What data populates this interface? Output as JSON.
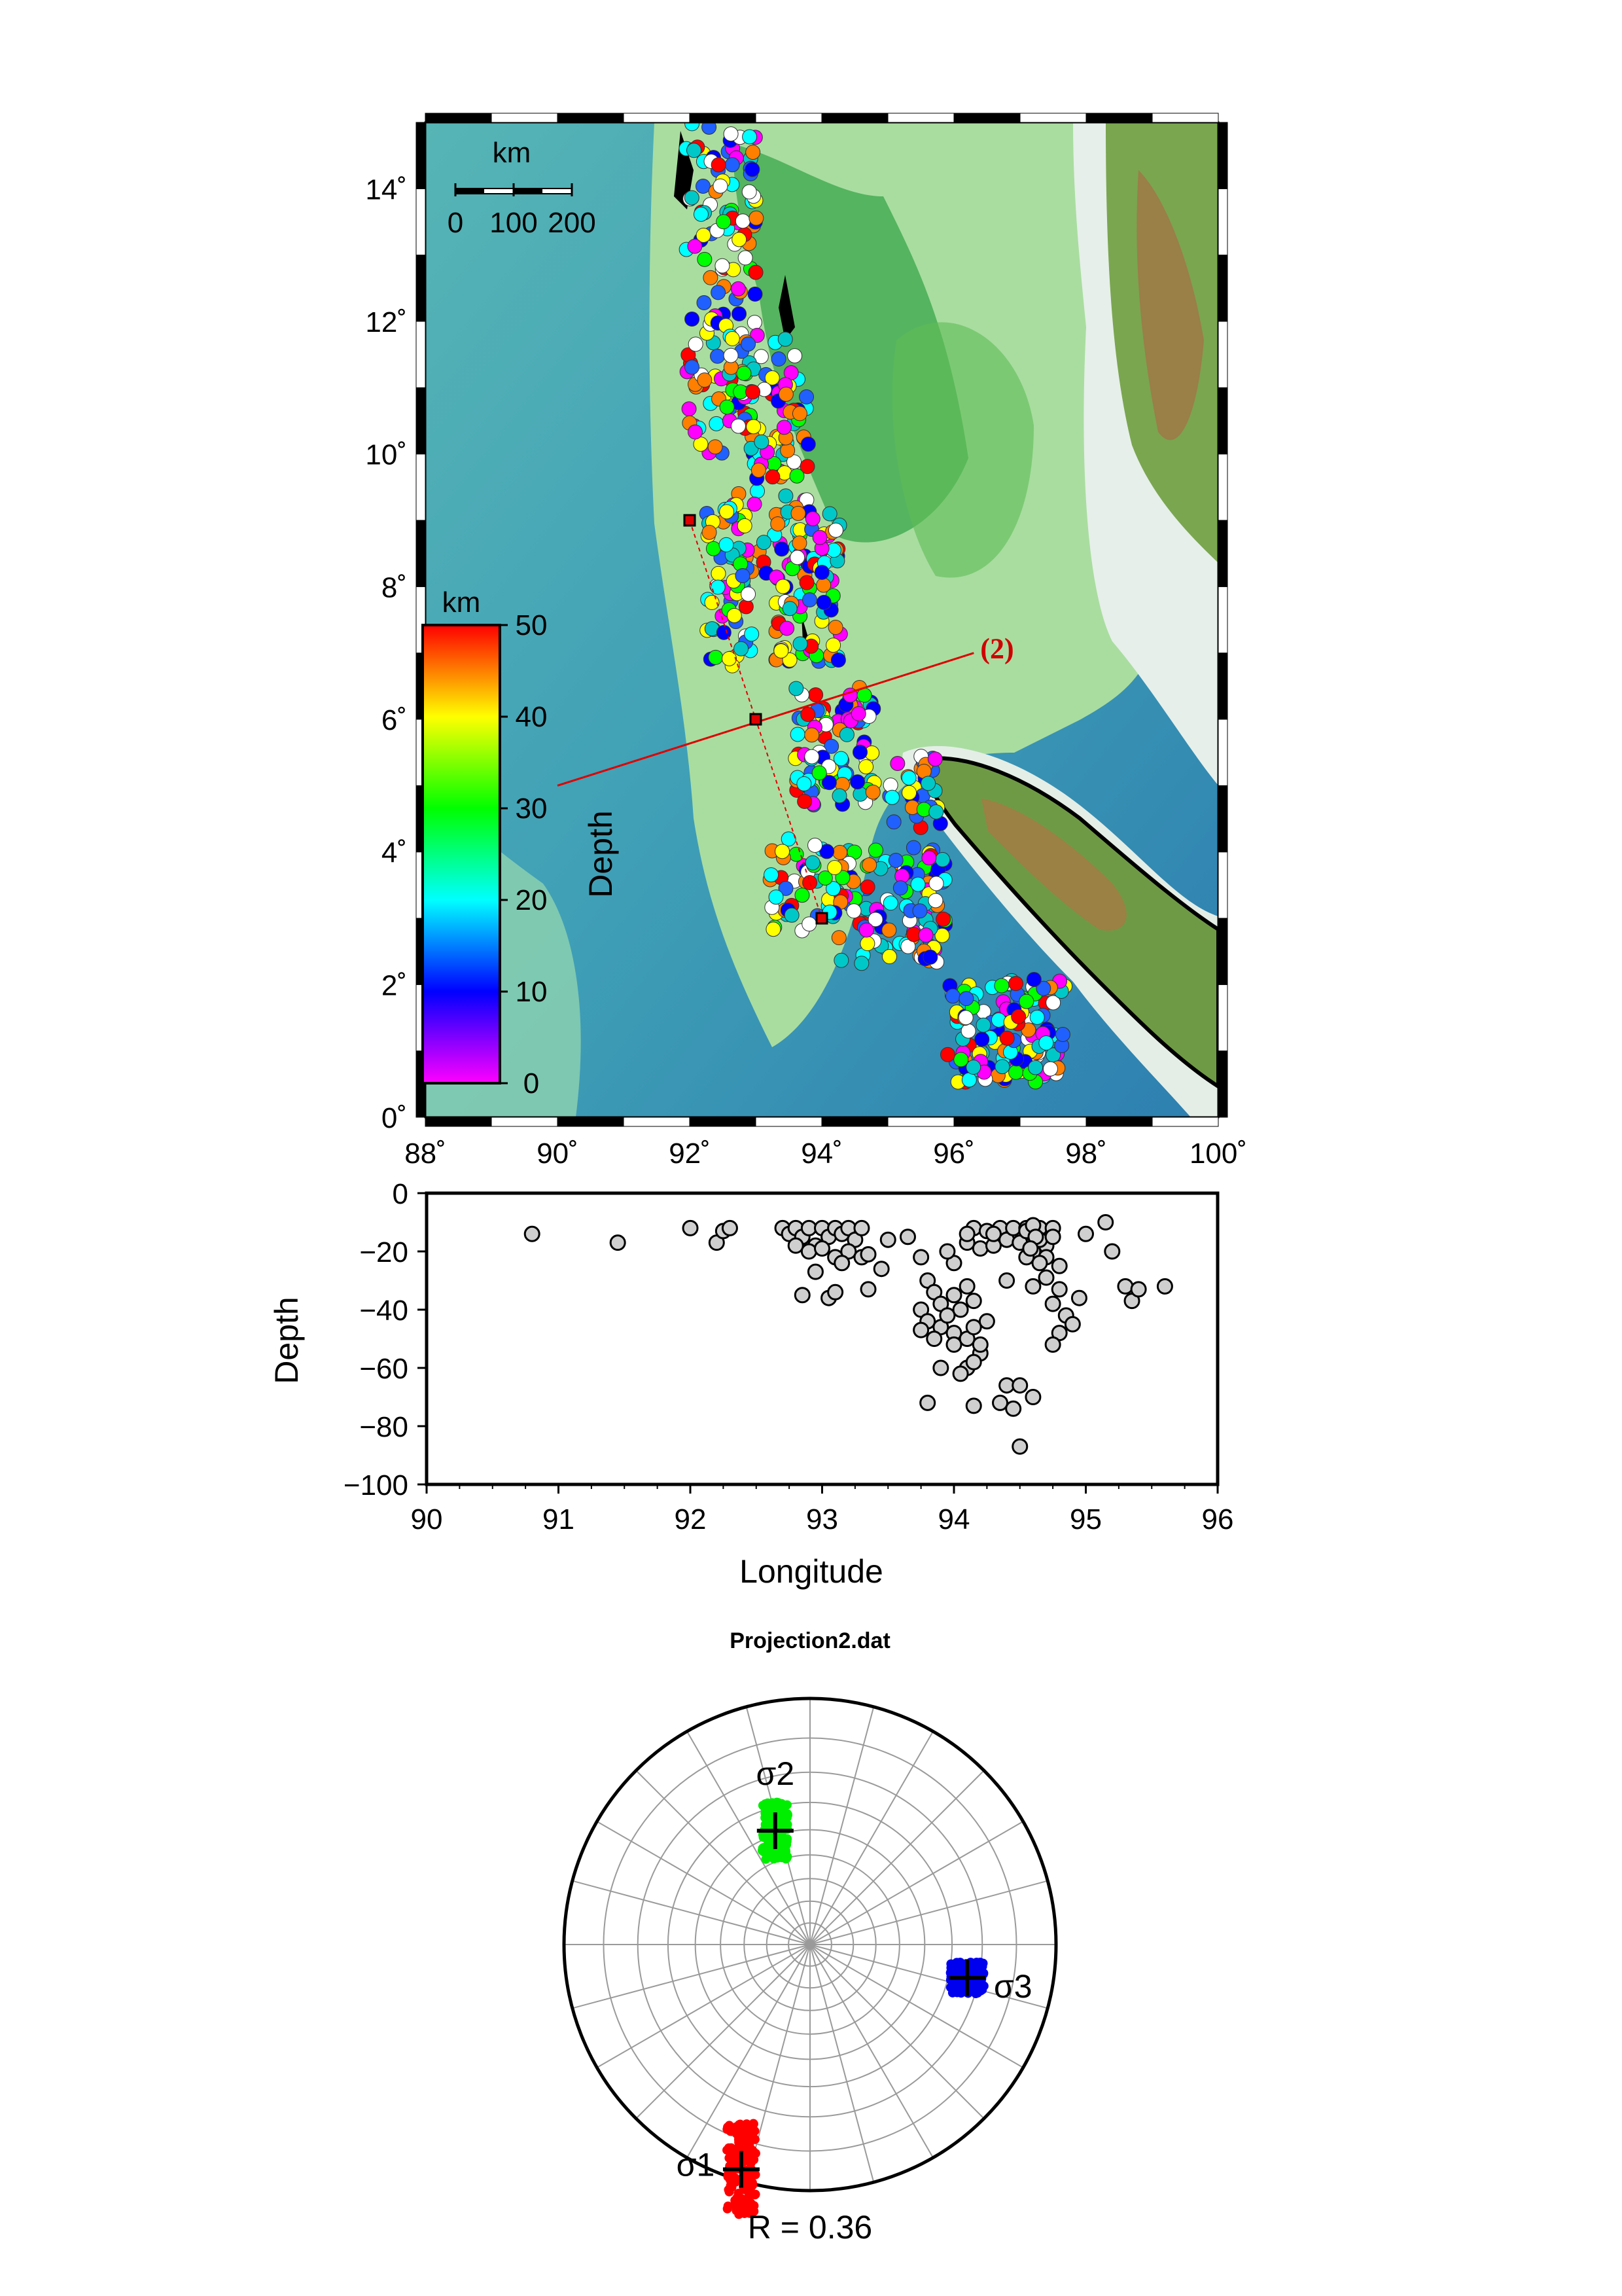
{
  "map": {
    "lon_ticks": [
      "88˚",
      "90˚",
      "92˚",
      "94˚",
      "96˚",
      "98˚",
      "100˚"
    ],
    "lat_ticks": [
      "0˚",
      "2˚",
      "4˚",
      "6˚",
      "8˚",
      "10˚",
      "12˚",
      "14˚"
    ],
    "lon_range": [
      88,
      100
    ],
    "lat_range": [
      0,
      15
    ],
    "scalebar": {
      "unit": "km",
      "labels": [
        "0",
        "100",
        "200"
      ]
    },
    "colorbar": {
      "unit": "km",
      "label": "Depth",
      "ticks": [
        "0",
        "10",
        "20",
        "30",
        "40",
        "50"
      ],
      "range": [
        0,
        50
      ],
      "colors": [
        "#ff00ff",
        "#0000ff",
        "#00ffff",
        "#00ff00",
        "#ffff00",
        "#ff0000"
      ]
    },
    "profile_label": "(2)",
    "profile_line": {
      "start": [
        90.0,
        5.0
      ],
      "end": [
        96.3,
        7.0
      ]
    },
    "trench_squares": [
      [
        92.0,
        9.0
      ],
      [
        93.0,
        6.0
      ],
      [
        94.0,
        3.0
      ]
    ]
  },
  "chart_data": [
    {
      "type": "scatter",
      "title": "",
      "xlabel": "Longitude",
      "ylabel": "Depth",
      "xlim": [
        90,
        96
      ],
      "ylim": [
        -100,
        0
      ],
      "xticks": [
        "90",
        "91",
        "92",
        "93",
        "94",
        "95",
        "96"
      ],
      "yticks": [
        "0",
        "−20",
        "−40",
        "−60",
        "−80",
        "−100"
      ],
      "points": [
        [
          90.8,
          -14
        ],
        [
          91.45,
          -17
        ],
        [
          92.0,
          -12
        ],
        [
          92.2,
          -17
        ],
        [
          92.25,
          -13
        ],
        [
          92.3,
          -12
        ],
        [
          92.7,
          -12
        ],
        [
          92.75,
          -14
        ],
        [
          92.8,
          -12
        ],
        [
          92.85,
          -15
        ],
        [
          92.9,
          -12
        ],
        [
          92.95,
          -18
        ],
        [
          93.0,
          -12
        ],
        [
          93.05,
          -15
        ],
        [
          93.1,
          -12
        ],
        [
          93.15,
          -14
        ],
        [
          93.2,
          -12
        ],
        [
          93.25,
          -16
        ],
        [
          93.3,
          -12
        ],
        [
          92.8,
          -18
        ],
        [
          92.9,
          -20
        ],
        [
          93.0,
          -19
        ],
        [
          93.1,
          -22
        ],
        [
          93.2,
          -20
        ],
        [
          93.3,
          -22
        ],
        [
          93.35,
          -21
        ],
        [
          93.45,
          -26
        ],
        [
          92.95,
          -27
        ],
        [
          93.15,
          -24
        ],
        [
          93.5,
          -16
        ],
        [
          92.85,
          -35
        ],
        [
          93.05,
          -36
        ],
        [
          93.1,
          -34
        ],
        [
          93.35,
          -33
        ],
        [
          93.65,
          -15
        ],
        [
          93.75,
          -22
        ],
        [
          93.8,
          -30
        ],
        [
          93.85,
          -34
        ],
        [
          93.9,
          -38
        ],
        [
          93.75,
          -40
        ],
        [
          93.8,
          -44
        ],
        [
          93.9,
          -46
        ],
        [
          93.95,
          -42
        ],
        [
          94.0,
          -35
        ],
        [
          94.05,
          -40
        ],
        [
          94.1,
          -32
        ],
        [
          94.15,
          -37
        ],
        [
          94.0,
          -48
        ],
        [
          93.85,
          -50
        ],
        [
          93.75,
          -47
        ],
        [
          94.0,
          -52
        ],
        [
          94.1,
          -50
        ],
        [
          94.15,
          -46
        ],
        [
          94.2,
          -55
        ],
        [
          94.25,
          -44
        ],
        [
          94.2,
          -52
        ],
        [
          94.1,
          -60
        ],
        [
          94.05,
          -62
        ],
        [
          93.9,
          -60
        ],
        [
          94.15,
          -58
        ],
        [
          93.8,
          -72
        ],
        [
          94.15,
          -73
        ],
        [
          94.35,
          -72
        ],
        [
          94.4,
          -66
        ],
        [
          94.45,
          -74
        ],
        [
          94.5,
          -66
        ],
        [
          94.6,
          -70
        ],
        [
          94.5,
          -87
        ],
        [
          94.0,
          -24
        ],
        [
          94.1,
          -17
        ],
        [
          94.15,
          -12
        ],
        [
          94.2,
          -19
        ],
        [
          94.25,
          -13
        ],
        [
          94.3,
          -18
        ],
        [
          94.35,
          -12
        ],
        [
          94.4,
          -16
        ],
        [
          94.45,
          -12
        ],
        [
          94.5,
          -17
        ],
        [
          94.55,
          -12
        ],
        [
          94.6,
          -14
        ],
        [
          94.65,
          -12
        ],
        [
          94.7,
          -18
        ],
        [
          94.75,
          -12
        ],
        [
          94.6,
          -20
        ],
        [
          94.65,
          -16
        ],
        [
          94.7,
          -22
        ],
        [
          94.75,
          -15
        ],
        [
          94.8,
          -25
        ],
        [
          94.55,
          -22
        ],
        [
          94.65,
          -24
        ],
        [
          94.7,
          -29
        ],
        [
          94.75,
          -38
        ],
        [
          94.8,
          -33
        ],
        [
          94.85,
          -42
        ],
        [
          94.9,
          -45
        ],
        [
          94.8,
          -48
        ],
        [
          94.75,
          -52
        ],
        [
          94.95,
          -36
        ],
        [
          94.4,
          -30
        ],
        [
          94.6,
          -32
        ],
        [
          94.3,
          -14
        ],
        [
          94.1,
          -14
        ],
        [
          93.95,
          -20
        ],
        [
          95.0,
          -14
        ],
        [
          95.15,
          -10
        ],
        [
          95.2,
          -20
        ],
        [
          95.3,
          -32
        ],
        [
          95.35,
          -37
        ],
        [
          95.4,
          -33
        ],
        [
          95.6,
          -32
        ],
        [
          94.55,
          -13
        ],
        [
          94.6,
          -11
        ],
        [
          94.62,
          -15
        ],
        [
          94.58,
          -19
        ]
      ]
    },
    {
      "type": "scatter",
      "title": "Projection2.dat",
      "footer": "R = 0.36",
      "series": [
        {
          "name": "σ1",
          "color": "#ff0000",
          "trend_deg": 197,
          "plunge_deg": 5
        },
        {
          "name": "σ2",
          "color": "#00ee00",
          "trend_deg": 343,
          "plunge_deg": 50
        },
        {
          "name": "σ3",
          "color": "#0000ee",
          "trend_deg": 102,
          "plunge_deg": 35
        }
      ]
    }
  ]
}
